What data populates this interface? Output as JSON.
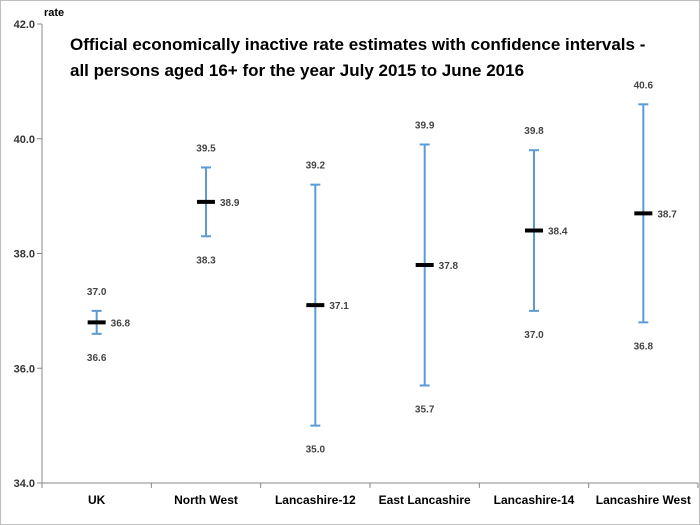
{
  "chart_data": {
    "type": "error-bar",
    "title_lines": [
      "Official economically inactive rate estimates with confidence intervals -",
      "all persons aged 16+ for the year July 2015 to June 2016"
    ],
    "ylabel": "rate",
    "xlabel": "",
    "ylim": [
      34.0,
      42.0
    ],
    "yticks": [
      34.0,
      36.0,
      38.0,
      40.0,
      42.0
    ],
    "ytick_labels": [
      "34.0",
      "36.0",
      "38.0",
      "40.0",
      "42.0"
    ],
    "grid": false,
    "legend": "none",
    "colors": {
      "interval": "#5B9BD5",
      "estimate": "#000000"
    },
    "categories": [
      "UK",
      "North West",
      "Lancashire-12",
      "East Lancashire",
      "Lancashire-14",
      "Lancashire West"
    ],
    "estimates": [
      36.8,
      38.9,
      37.1,
      37.8,
      38.4,
      38.7
    ],
    "lower": [
      36.6,
      38.3,
      35.0,
      35.7,
      37.0,
      36.8
    ],
    "upper": [
      37.0,
      39.5,
      39.2,
      39.9,
      39.8,
      40.6
    ],
    "estimate_labels": [
      "36.8",
      "38.9",
      "37.1",
      "37.8",
      "38.4",
      "38.7"
    ],
    "lower_labels": [
      "36.6",
      "38.3",
      "35.0",
      "35.7",
      "37.0",
      "36.8"
    ],
    "upper_labels": [
      "37.0",
      "39.5",
      "39.2",
      "39.9",
      "39.8",
      "40.6"
    ]
  }
}
